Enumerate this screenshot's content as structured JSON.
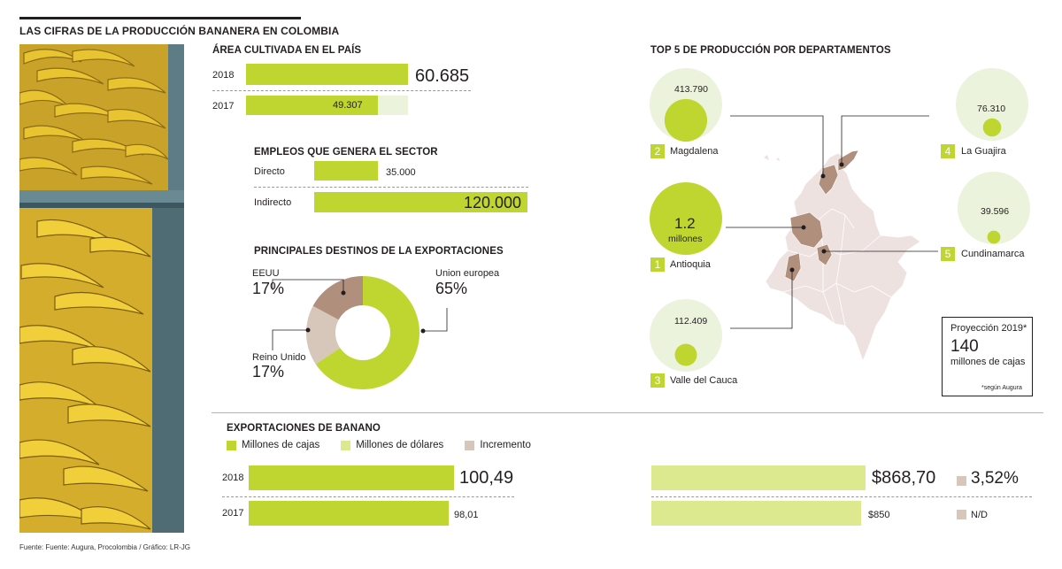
{
  "title": "LAS CIFRAS DE LA PRODUCCIÓN BANANERA EN COLOMBIA",
  "colors": {
    "green": "#bfd630",
    "light_green": "#dde98f",
    "pale_green": "#ebf3dc",
    "brown": "#b0907c",
    "light_brown": "#d7c6ba",
    "map_fill": "#ede2df"
  },
  "area": {
    "title": "ÁREA CULTIVADA EN EL PAÍS",
    "rows": [
      {
        "year": "2018",
        "value": 60685,
        "label": "60.685"
      },
      {
        "year": "2017",
        "value": 49307,
        "label": "49.307"
      }
    ]
  },
  "employment": {
    "title": "EMPLEOS QUE GENERA EL SECTOR",
    "rows": [
      {
        "name": "Directo",
        "value": 35000,
        "label": "35.000"
      },
      {
        "name": "Indirecto",
        "value": 120000,
        "label": "120.000"
      }
    ]
  },
  "destinations": {
    "title": "PRINCIPALES DESTINOS DE LA EXPORTACIONES",
    "slices": [
      {
        "name": "Union europea",
        "pct": 65,
        "label": "65%"
      },
      {
        "name": "EEUU",
        "pct": 17,
        "label": "17%"
      },
      {
        "name": "Reino Unido",
        "pct": 17,
        "label": "17%"
      }
    ]
  },
  "top5": {
    "title": "TOP 5 DE PRODUCCIÓN POR DEPARTAMENTOS",
    "departments": [
      {
        "rank": "1",
        "name": "Antioquia",
        "value": 1200000,
        "label": "1.2",
        "unit": "millones"
      },
      {
        "rank": "2",
        "name": "Magdalena",
        "value": 413790,
        "label": "413.790"
      },
      {
        "rank": "3",
        "name": "Valle del Cauca",
        "value": 112409,
        "label": "112.409"
      },
      {
        "rank": "4",
        "name": "La Guajira",
        "value": 76310,
        "label": "76.310"
      },
      {
        "rank": "5",
        "name": "Cundinamarca",
        "value": 39596,
        "label": "39.596"
      }
    ]
  },
  "projection": {
    "title": "Proyección 2019*",
    "value": "140",
    "unit": "millones de cajas",
    "note": "*según Augura"
  },
  "exports": {
    "title": "EXPORTACIONES DE BANANO",
    "legend": [
      "Millones de cajas",
      "Millones de dólares",
      "Incremento"
    ],
    "rows": [
      {
        "year": "2018",
        "boxes": 100.49,
        "boxes_label": "100,49",
        "usd": 868.7,
        "usd_label": "$868,70",
        "increase": "3,52%"
      },
      {
        "year": "2017",
        "boxes": 98.01,
        "boxes_label": "98,01",
        "usd": 850,
        "usd_label": "$850",
        "increase": "N/D"
      }
    ]
  },
  "source": "Fuente: Fuente: Augura, Procolombia / Gráfico: LR-JG",
  "chart_data": [
    {
      "type": "bar",
      "title": "ÁREA CULTIVADA EN EL PAÍS",
      "categories": [
        "2018",
        "2017"
      ],
      "values": [
        60685,
        49307
      ]
    },
    {
      "type": "bar",
      "title": "EMPLEOS QUE GENERA EL SECTOR",
      "categories": [
        "Directo",
        "Indirecto"
      ],
      "values": [
        35000,
        120000
      ]
    },
    {
      "type": "pie",
      "title": "PRINCIPALES DESTINOS DE LA EXPORTACIONES",
      "categories": [
        "Union europea",
        "EEUU",
        "Reino Unido"
      ],
      "values": [
        65,
        17,
        17
      ]
    },
    {
      "type": "scatter",
      "title": "TOP 5 DE PRODUCCIÓN POR DEPARTAMENTOS",
      "categories": [
        "Antioquia",
        "Magdalena",
        "Valle del Cauca",
        "La Guajira",
        "Cundinamarca"
      ],
      "values": [
        1200000,
        413790,
        112409,
        76310,
        39596
      ]
    },
    {
      "type": "bar",
      "title": "EXPORTACIONES DE BANANO",
      "categories": [
        "2018",
        "2017"
      ],
      "series": [
        {
          "name": "Millones de cajas",
          "values": [
            100.49,
            98.01
          ]
        },
        {
          "name": "Millones de dólares",
          "values": [
            868.7,
            850
          ]
        }
      ]
    }
  ]
}
